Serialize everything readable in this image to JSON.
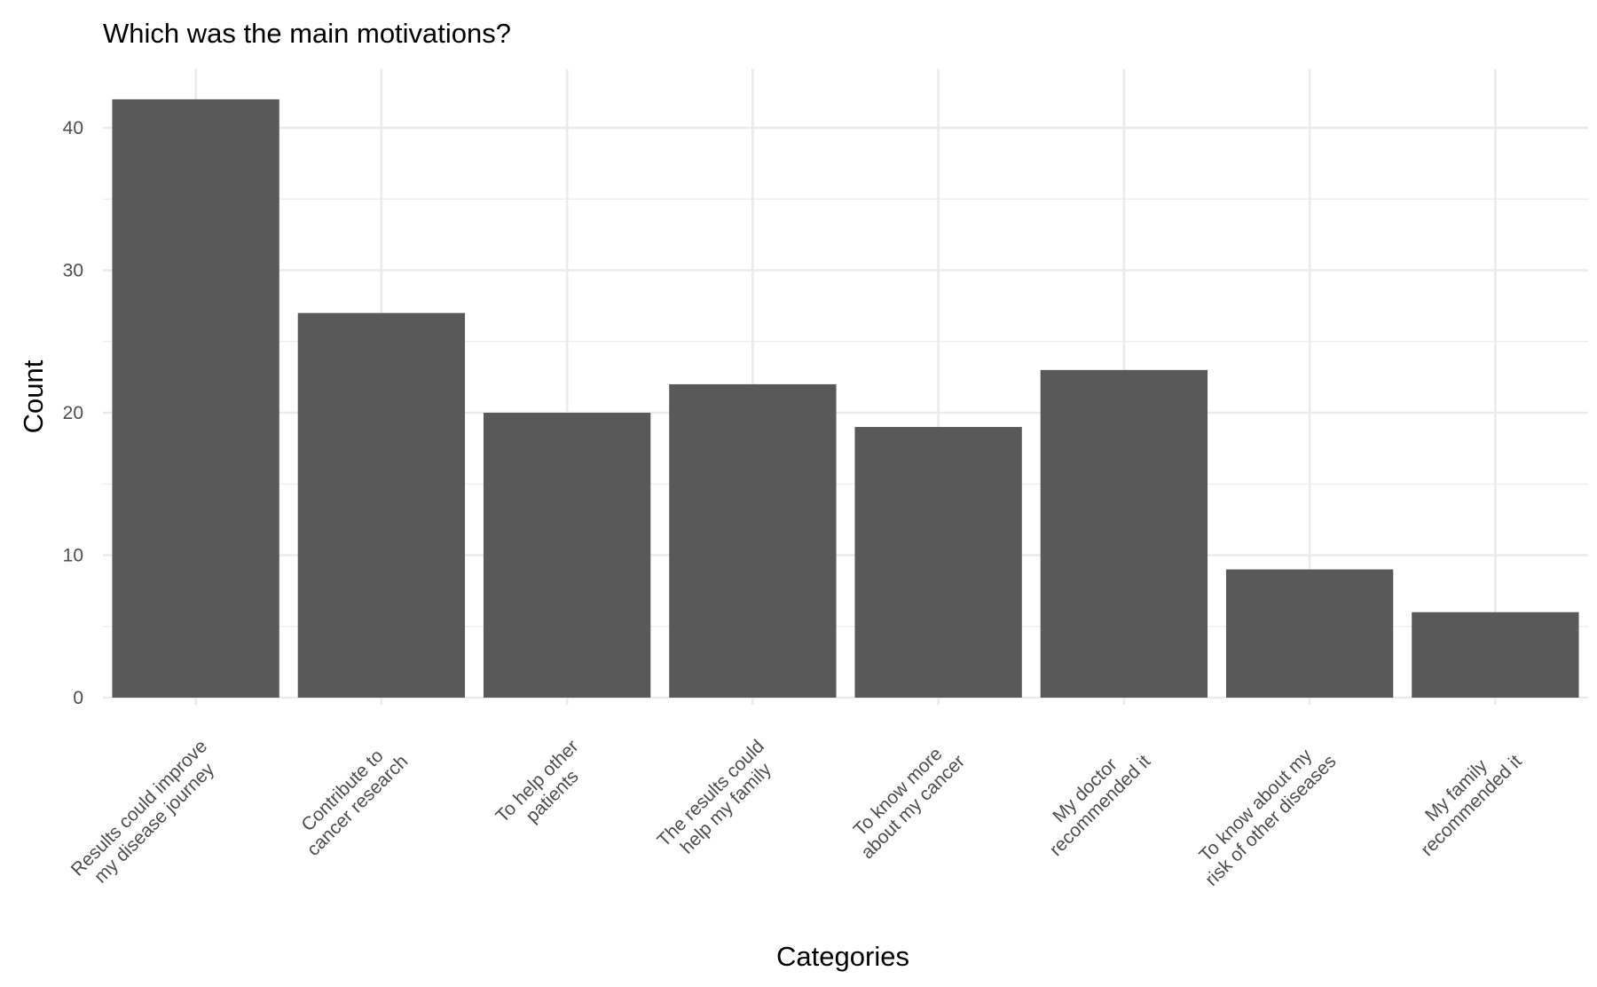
{
  "chart_data": {
    "type": "bar",
    "title": "Which was the main motivations?",
    "xlabel": "Categories",
    "ylabel": "Count",
    "categories": [
      [
        "Results could improve",
        "my disease journey"
      ],
      [
        "Contribute to",
        "cancer research"
      ],
      [
        "To help other",
        "patients"
      ],
      [
        "The results could",
        "help my family"
      ],
      [
        "To know more",
        "about my cancer"
      ],
      [
        "My doctor",
        "recommended it"
      ],
      [
        "To know about my",
        "risk of other diseases"
      ],
      [
        "My family",
        "recommended it"
      ]
    ],
    "values": [
      42,
      27,
      20,
      22,
      19,
      23,
      9,
      6
    ],
    "ylim": [
      0,
      44
    ],
    "yticks": [
      0,
      10,
      20,
      30,
      40
    ],
    "grid": true,
    "bar_color": "#595959",
    "grid_color": "#ebebeb"
  }
}
